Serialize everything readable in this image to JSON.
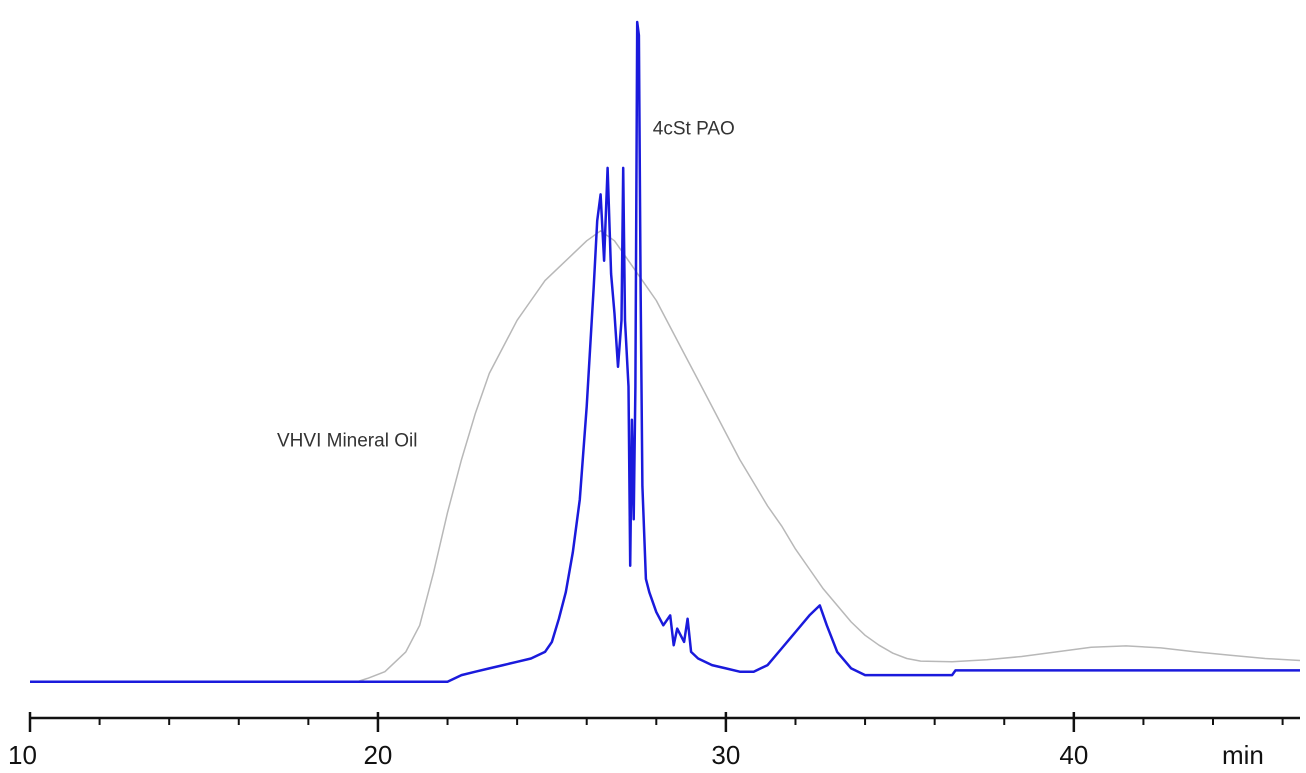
{
  "chart_data": {
    "type": "line",
    "title": "",
    "xlabel": "",
    "ylabel": "",
    "x_unit_label": "min",
    "xlim": [
      10,
      46.5
    ],
    "ylim": [
      0,
      100
    ],
    "x_ticks_major": [
      10,
      20,
      30,
      40
    ],
    "x_ticks_minor": [
      12,
      14,
      16,
      18,
      22,
      24,
      26,
      28,
      32,
      34,
      36,
      38,
      42,
      44,
      46
    ],
    "grid": false,
    "legend": "none",
    "annotations": [
      {
        "text": "4cSt PAO",
        "x": 27.9,
        "y": 83
      },
      {
        "text": "VHVI Mineral Oil",
        "x": 17.1,
        "y": 36
      }
    ],
    "series": [
      {
        "color": "#b8b8b8",
        "points": [
          [
            10,
            0.5
          ],
          [
            19.4,
            0.5
          ],
          [
            19.7,
            1.0
          ],
          [
            20.2,
            2.0
          ],
          [
            20.8,
            5.0
          ],
          [
            21.2,
            9.0
          ],
          [
            21.6,
            17.0
          ],
          [
            22.0,
            26.0
          ],
          [
            22.4,
            34.0
          ],
          [
            22.8,
            41.0
          ],
          [
            23.2,
            47.0
          ],
          [
            23.6,
            51.0
          ],
          [
            24.0,
            55.0
          ],
          [
            24.4,
            58.0
          ],
          [
            24.8,
            61.0
          ],
          [
            25.2,
            63.0
          ],
          [
            25.6,
            65.0
          ],
          [
            26.0,
            67.0
          ],
          [
            26.4,
            68.5
          ],
          [
            26.8,
            67.0
          ],
          [
            27.2,
            64.0
          ],
          [
            27.6,
            61.0
          ],
          [
            28.0,
            58.0
          ],
          [
            28.4,
            54.0
          ],
          [
            28.8,
            50.0
          ],
          [
            29.2,
            46.0
          ],
          [
            29.6,
            42.0
          ],
          [
            30.0,
            38.0
          ],
          [
            30.4,
            34.0
          ],
          [
            30.8,
            30.5
          ],
          [
            31.2,
            27.0
          ],
          [
            31.6,
            24.0
          ],
          [
            32.0,
            20.5
          ],
          [
            32.4,
            17.5
          ],
          [
            32.8,
            14.5
          ],
          [
            33.2,
            12.0
          ],
          [
            33.6,
            9.5
          ],
          [
            34.0,
            7.5
          ],
          [
            34.4,
            6.0
          ],
          [
            34.8,
            4.8
          ],
          [
            35.2,
            4.0
          ],
          [
            35.6,
            3.6
          ],
          [
            36.5,
            3.5
          ],
          [
            37.5,
            3.8
          ],
          [
            38.5,
            4.3
          ],
          [
            39.5,
            5.0
          ],
          [
            40.5,
            5.7
          ],
          [
            41.5,
            5.9
          ],
          [
            42.5,
            5.6
          ],
          [
            43.5,
            5.0
          ],
          [
            44.5,
            4.5
          ],
          [
            45.5,
            4.0
          ],
          [
            46.5,
            3.7
          ]
        ]
      },
      {
        "color": "#1a1adc",
        "points": [
          [
            10,
            0.5
          ],
          [
            22.0,
            0.5
          ],
          [
            22.4,
            1.5
          ],
          [
            22.8,
            2.0
          ],
          [
            23.2,
            2.5
          ],
          [
            23.6,
            3.0
          ],
          [
            24.0,
            3.5
          ],
          [
            24.4,
            4.0
          ],
          [
            24.8,
            5.0
          ],
          [
            25.0,
            6.5
          ],
          [
            25.2,
            10.0
          ],
          [
            25.4,
            14.0
          ],
          [
            25.6,
            20.0
          ],
          [
            25.8,
            28.0
          ],
          [
            26.0,
            42.0
          ],
          [
            26.2,
            60.0
          ],
          [
            26.3,
            70.0
          ],
          [
            26.4,
            74.0
          ],
          [
            26.5,
            64.0
          ],
          [
            26.6,
            78.0
          ],
          [
            26.7,
            62.0
          ],
          [
            26.8,
            56.0
          ],
          [
            26.9,
            48.0
          ],
          [
            27.0,
            55.0
          ],
          [
            27.05,
            78.0
          ],
          [
            27.1,
            55.0
          ],
          [
            27.2,
            45.0
          ],
          [
            27.25,
            18.0
          ],
          [
            27.3,
            40.0
          ],
          [
            27.35,
            25.0
          ],
          [
            27.4,
            45.0
          ],
          [
            27.45,
            100.0
          ],
          [
            27.5,
            98.0
          ],
          [
            27.55,
            60.0
          ],
          [
            27.6,
            30.0
          ],
          [
            27.7,
            16.0
          ],
          [
            27.8,
            14.0
          ],
          [
            28.0,
            11.0
          ],
          [
            28.2,
            9.0
          ],
          [
            28.4,
            10.5
          ],
          [
            28.5,
            6.0
          ],
          [
            28.6,
            8.5
          ],
          [
            28.8,
            6.5
          ],
          [
            28.9,
            10.0
          ],
          [
            29.0,
            5.0
          ],
          [
            29.2,
            4.0
          ],
          [
            29.6,
            3.0
          ],
          [
            30.0,
            2.5
          ],
          [
            30.4,
            2.0
          ],
          [
            30.8,
            2.0
          ],
          [
            31.2,
            3.0
          ],
          [
            31.6,
            5.5
          ],
          [
            32.0,
            8.0
          ],
          [
            32.4,
            10.5
          ],
          [
            32.7,
            12.0
          ],
          [
            32.9,
            9.0
          ],
          [
            33.2,
            5.0
          ],
          [
            33.6,
            2.5
          ],
          [
            34.0,
            1.5
          ],
          [
            34.8,
            1.5
          ],
          [
            36.5,
            1.5
          ],
          [
            36.6,
            2.2
          ],
          [
            46.5,
            2.2
          ]
        ]
      }
    ]
  }
}
